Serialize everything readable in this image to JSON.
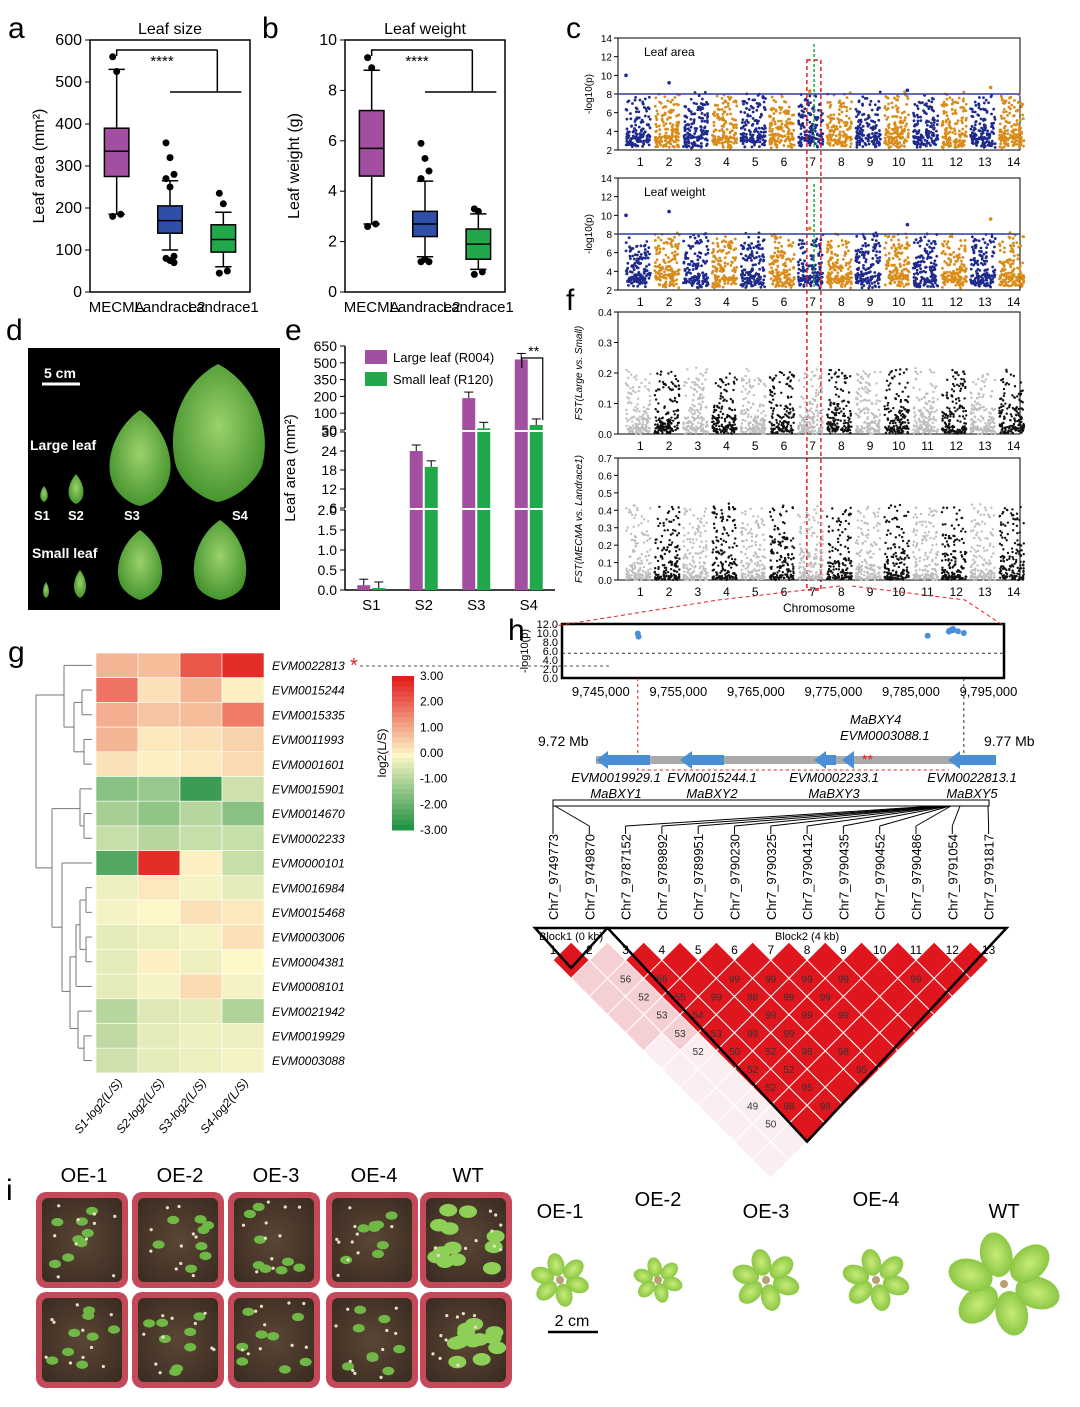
{
  "panel_letters": {
    "a": "a",
    "b": "b",
    "c": "c",
    "d": "d",
    "e": "e",
    "f": "f",
    "g": "g",
    "h": "h",
    "i": "i"
  },
  "colors": {
    "mecma": "#a24fa2",
    "landrace2": "#2f4ea5",
    "landrace1": "#22a84a",
    "manhattan_blue": "#1f2a8c",
    "manhattan_orange": "#d98c1a",
    "fst_grey": "#bdbdbd",
    "fst_black": "#111111",
    "threshold": "#2e3ba0",
    "highlight_red": "#e02020",
    "ld_red": "#e0161e",
    "ld_pink": "#f4cfd3",
    "gene_arrow": "#4a8fd6"
  },
  "chart_data": [
    {
      "id": "a",
      "type": "box",
      "title": "Leaf size",
      "ylabel": "Leaf area (mm²)",
      "ylim": [
        0,
        600
      ],
      "yticks": [
        "0",
        "100",
        "200",
        "300",
        "400",
        "500",
        "600"
      ],
      "categories": [
        "MECMA",
        "Landrace2",
        "Landrace1"
      ],
      "boxes": [
        {
          "min": 185,
          "q1": 275,
          "median": 335,
          "q3": 390,
          "max": 530,
          "outliers": [
            560,
            525,
            185,
            180
          ]
        },
        {
          "min": 100,
          "q1": 140,
          "median": 170,
          "q3": 205,
          "max": 265,
          "outliers": [
            355,
            320,
            280,
            270,
            250,
            85,
            80,
            75,
            70
          ]
        },
        {
          "min": 60,
          "q1": 95,
          "median": 125,
          "q3": 160,
          "max": 190,
          "outliers": [
            235,
            210,
            50,
            45
          ]
        }
      ],
      "significance": "****"
    },
    {
      "id": "b",
      "type": "box",
      "title": "Leaf weight",
      "ylabel": "Leaf weight (g)",
      "ylim": [
        0,
        10
      ],
      "yticks": [
        "0",
        "2",
        "4",
        "6",
        "8",
        "10"
      ],
      "categories": [
        "MECMA",
        "Landrace2",
        "Landrace1"
      ],
      "boxes": [
        {
          "min": 2.7,
          "q1": 4.6,
          "median": 5.7,
          "q3": 7.2,
          "max": 8.8,
          "outliers": [
            9.3,
            8.9,
            2.7,
            2.6
          ]
        },
        {
          "min": 1.4,
          "q1": 2.2,
          "median": 2.7,
          "q3": 3.2,
          "max": 4.4,
          "outliers": [
            5.9,
            5.3,
            4.8,
            4.5,
            1.3,
            1.2,
            1.2
          ]
        },
        {
          "min": 0.9,
          "q1": 1.3,
          "median": 1.9,
          "q3": 2.5,
          "max": 3.1,
          "outliers": [
            3.3,
            3.2,
            0.8,
            0.7
          ]
        }
      ],
      "significance": "****"
    },
    {
      "id": "c",
      "type": "scatter",
      "ylabel": "-log10(p)",
      "yticks": [
        "2",
        "4",
        "6",
        "8",
        "10",
        "12",
        "14"
      ],
      "panels": [
        {
          "label": "Leaf area"
        },
        {
          "label": "Leaf weight"
        }
      ],
      "threshold": 8,
      "chromosomes": [
        "1",
        "2",
        "3",
        "4",
        "5",
        "6",
        "7",
        "8",
        "9",
        "10",
        "11",
        "12",
        "13",
        "14"
      ]
    },
    {
      "id": "e",
      "type": "bar",
      "ylabel": "Leaf area (mm²)",
      "categories": [
        "S1",
        "S2",
        "S3",
        "S4"
      ],
      "series": [
        {
          "name": "Large leaf (R004)",
          "values": [
            0.12,
            24,
            190,
            530
          ]
        },
        {
          "name": "Small leaf (R120)",
          "values": [
            0.05,
            19,
            55,
            65
          ]
        }
      ],
      "yticks_top": [
        "50",
        "100",
        "200",
        "350",
        "500",
        "650"
      ],
      "yticks_mid": [
        "6",
        "12",
        "18",
        "24",
        "30"
      ],
      "yticks_bot": [
        "0.0",
        "0.5",
        "1.0",
        "1.5",
        "2.0"
      ],
      "significance": "**"
    },
    {
      "id": "f",
      "type": "scatter",
      "xlabel": "Chromosome",
      "panels": [
        {
          "ylabel": "FST(Large vs. Small)",
          "yticks": [
            "0.0",
            "0.1",
            "0.2",
            "0.3",
            "0.4"
          ]
        },
        {
          "ylabel": "FST(MECMA vs. Landrace1)",
          "yticks": [
            "0.0",
            "0.1",
            "0.2",
            "0.3",
            "0.4",
            "0.5",
            "0.6",
            "0.7"
          ]
        }
      ],
      "chromosomes": [
        "1",
        "2",
        "3",
        "4",
        "5",
        "6",
        "7",
        "8",
        "9",
        "10",
        "11",
        "12",
        "13",
        "14"
      ]
    },
    {
      "id": "g",
      "type": "heatmap",
      "columns": [
        "S1-log2(L/S)",
        "S2-log2(L/S)",
        "S3-log2(L/S)",
        "S4-log2(L/S)"
      ],
      "rows": [
        "EVM0022813",
        "EVM0015244",
        "EVM0015335",
        "EVM0011993",
        "EVM0001601",
        "EVM0015901",
        "EVM0014670",
        "EVM0002233",
        "EVM0000101",
        "EVM0016984",
        "EVM0015468",
        "EVM0003006",
        "EVM0004381",
        "EVM0008101",
        "EVM0021942",
        "EVM0019929",
        "EVM0003088"
      ],
      "values": [
        [
          0.9,
          0.8,
          2.2,
          2.8
        ],
        [
          1.8,
          0.3,
          0.9,
          0.1
        ],
        [
          1.0,
          0.7,
          0.8,
          1.7
        ],
        [
          0.9,
          0.2,
          0.3,
          0.5
        ],
        [
          0.3,
          0.1,
          0.2,
          0.4
        ],
        [
          -1.5,
          -1.3,
          -2.5,
          -0.6
        ],
        [
          -1.1,
          -1.4,
          -0.9,
          -1.5
        ],
        [
          -0.7,
          -0.9,
          -0.7,
          -0.7
        ],
        [
          -2.2,
          2.8,
          0.1,
          -0.7
        ],
        [
          -0.2,
          0.2,
          -0.1,
          -0.3
        ],
        [
          -0.1,
          0.0,
          0.3,
          0.2
        ],
        [
          -0.3,
          -0.2,
          -0.1,
          0.3
        ],
        [
          -0.3,
          0.1,
          -0.2,
          0.0
        ],
        [
          -0.3,
          -0.1,
          0.4,
          -0.1
        ],
        [
          -0.9,
          -0.4,
          -0.3,
          -1.0
        ],
        [
          -0.8,
          -0.3,
          -0.2,
          -0.2
        ],
        [
          -0.6,
          -0.3,
          -0.2,
          -0.1
        ]
      ],
      "colorbar_label": "log2(L/S)",
      "colorbar_ticks": [
        "3.00",
        "2.00",
        "1.00",
        "0.00",
        "-1.00",
        "-2.00",
        "-3.00"
      ],
      "marked_row": "EVM0022813",
      "mark": "*"
    },
    {
      "id": "h",
      "type": "scatter",
      "ylabel": "-log10(p)",
      "yticks": [
        "0.0",
        "2.0",
        "4.0",
        "6.0",
        "8.0",
        "10.0",
        "12.0"
      ],
      "xticks": [
        "9,745,000",
        "9,755,000",
        "9,765,000",
        "9,775,000",
        "9,785,000",
        "9,795,000"
      ],
      "points": [
        [
          9749773,
          9.9
        ],
        [
          9749870,
          9.2
        ],
        [
          9787152,
          9.4
        ],
        [
          9789892,
          10.3
        ],
        [
          9789951,
          10.5
        ],
        [
          9790230,
          10.6
        ],
        [
          9790325,
          10.8
        ],
        [
          9790412,
          10.6
        ],
        [
          9790435,
          10.9
        ],
        [
          9791054,
          10.4
        ],
        [
          9791817,
          10.0
        ]
      ],
      "region_start": "9.72 Mb",
      "region_end": "9.77 Mb",
      "genes_top": [
        {
          "id": "MaBXY4",
          "name": "EVM0003088.1"
        }
      ],
      "genes_bottom": [
        {
          "id": "EVM0019929.1",
          "name": "MaBXY1"
        },
        {
          "id": "EVM0015244.1",
          "name": "MaBXY2"
        },
        {
          "id": "EVM0002233.1",
          "name": "MaBXY3"
        },
        {
          "id": "EVM0022813.1",
          "name": "MaBXY5"
        }
      ],
      "snps": [
        "Chr7_9749773",
        "Chr7_9749870",
        "Chr7_9787152",
        "Chr7_9789892",
        "Chr7_9789951",
        "Chr7_9790230",
        "Chr7_9790325",
        "Chr7_9790412",
        "Chr7_9790435",
        "Chr7_9790452",
        "Chr7_9790486",
        "Chr7_9791054",
        "Chr7_9791817"
      ],
      "blocks": [
        "Block1 (0 kb)",
        "Block2 (4 kb)"
      ],
      "ld_numbers": [
        "56",
        "52",
        "56",
        "53",
        "55",
        "53",
        "54",
        "52",
        "53",
        "50",
        "52",
        "52",
        "49",
        "50",
        "52",
        "52",
        "99",
        "99",
        "99",
        "99",
        "99",
        "99",
        "98",
        "99",
        "99",
        "99",
        "99",
        "99",
        "99",
        "99",
        "98",
        "98",
        "98",
        "95",
        "95",
        "98"
      ]
    }
  ],
  "panel_d": {
    "scale": "5 cm",
    "large": "Large leaf",
    "small": "Small leaf",
    "stages": [
      "S1",
      "S2",
      "S3",
      "S4"
    ]
  },
  "panel_i": {
    "pots": [
      "OE-1",
      "OE-2",
      "OE-3",
      "OE-4",
      "WT"
    ],
    "plants": [
      "OE-1",
      "OE-2",
      "OE-3",
      "OE-4",
      "WT"
    ],
    "scale": "2 cm"
  }
}
